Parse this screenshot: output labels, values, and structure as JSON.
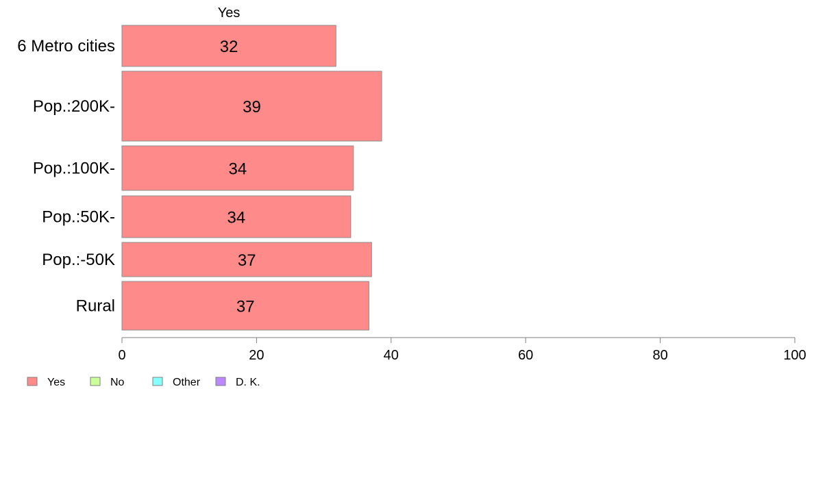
{
  "chart_data": {
    "type": "bar",
    "orientation": "horizontal",
    "stacked": true,
    "column_header": "Yes",
    "categories": [
      "6 Metro cities",
      "Pop.:200K-",
      "Pop.:100K-",
      "Pop.:50K-",
      "Pop.:-50K",
      "Rural"
    ],
    "series": [
      {
        "name": "Yes",
        "color": "#ff8a8a",
        "values": [
          31.8,
          38.6,
          34.4,
          34.0,
          37.1,
          36.7
        ],
        "labels": [
          "32",
          "39",
          "34",
          "34",
          "37",
          "37"
        ]
      }
    ],
    "xlim": [
      0,
      100
    ],
    "xticks": [
      "0",
      "20",
      "40",
      "60",
      "80",
      "100"
    ],
    "grid": false,
    "legend": {
      "placement": "bottom-left",
      "items": [
        {
          "label": "Yes",
          "color": "#ff8a8a"
        },
        {
          "label": "No",
          "color": "#ccff99"
        },
        {
          "label": "Other",
          "color": "#88ffff"
        },
        {
          "label": "D. K.",
          "color": "#bb88ff"
        }
      ]
    }
  }
}
